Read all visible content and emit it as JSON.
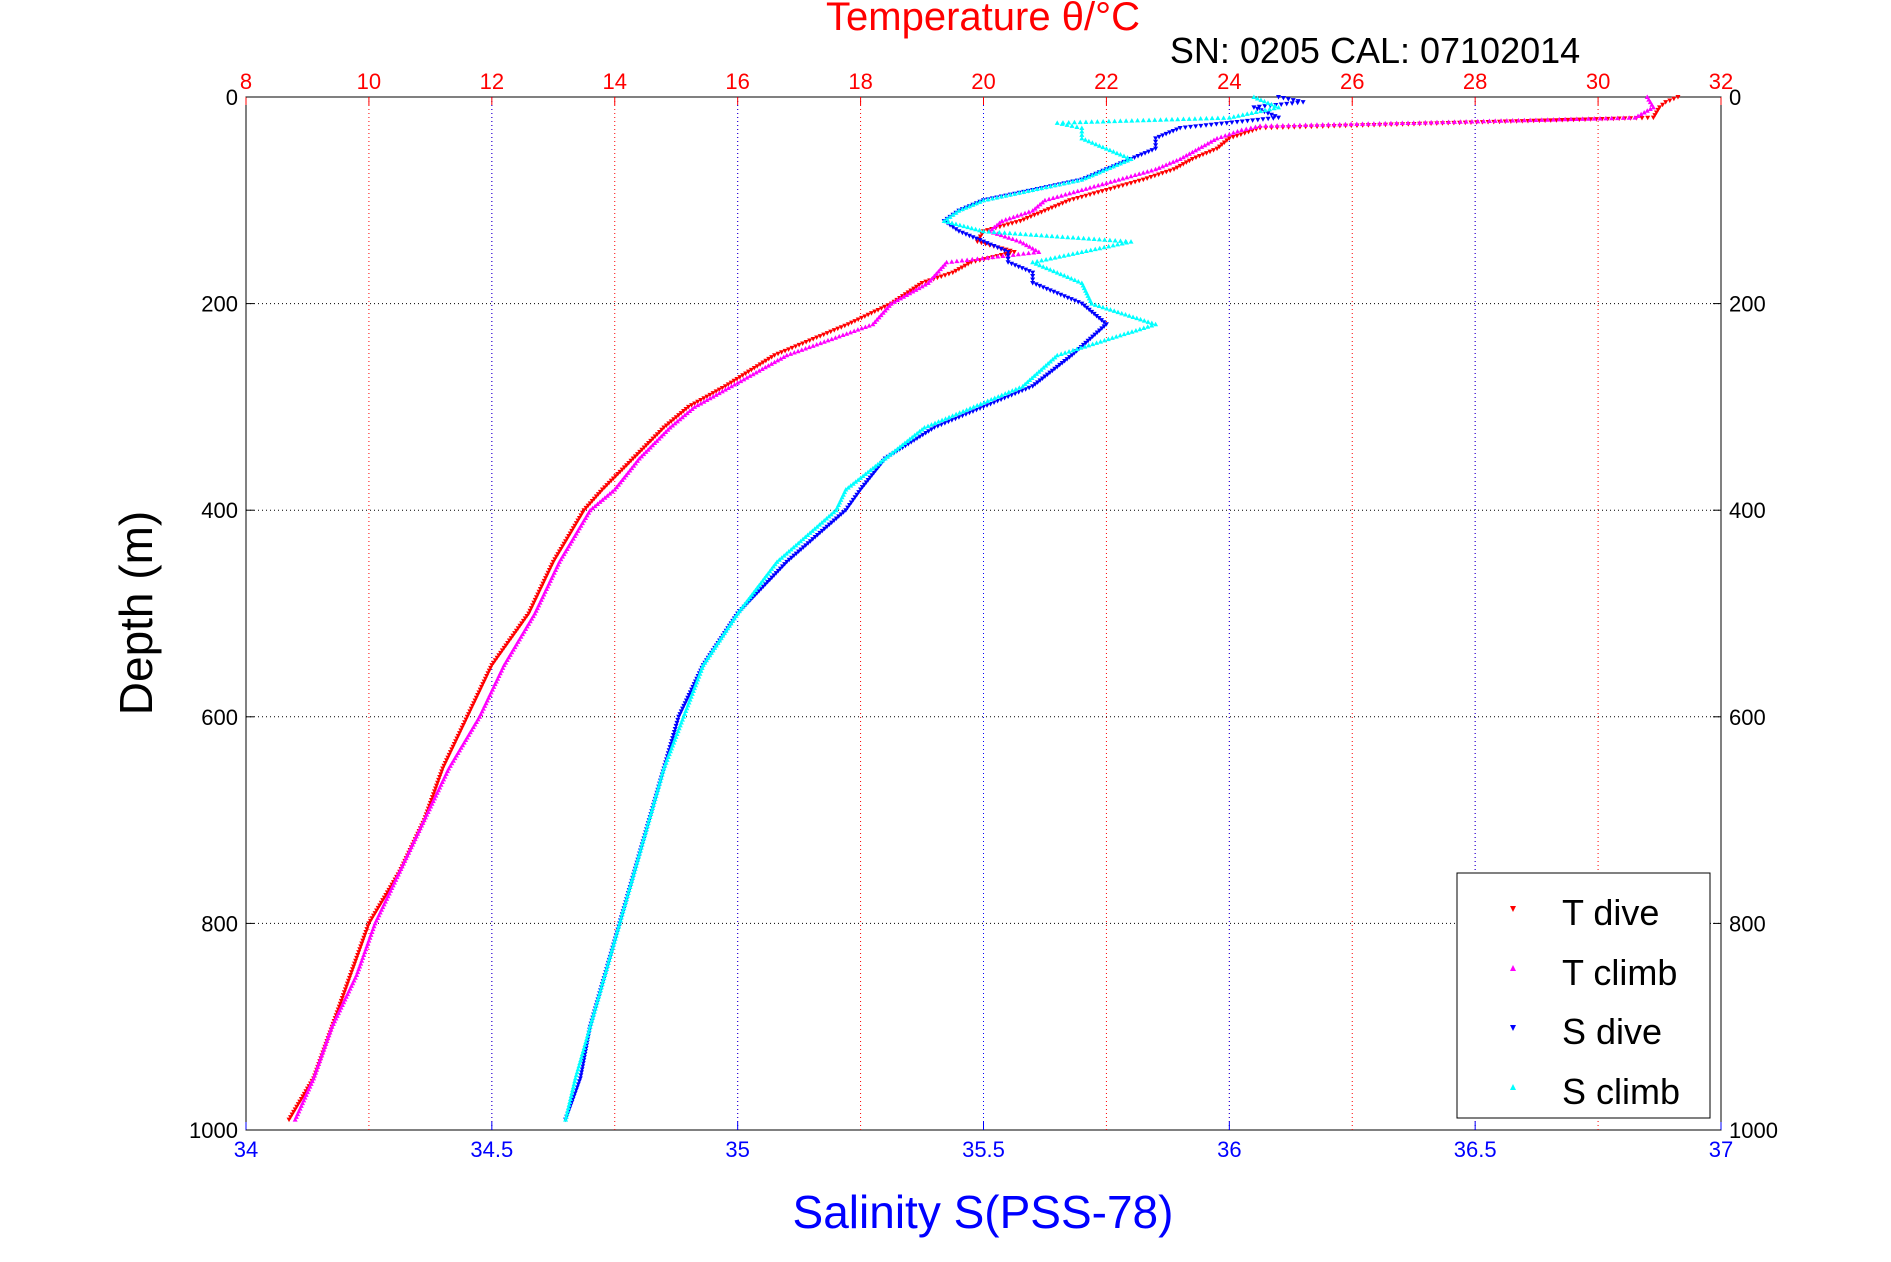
{
  "chart_data": {
    "type": "scatter",
    "title": "Temperature θ/°C",
    "subtitle": "SN: 0205  CAL: 07102014",
    "ylabel": "Depth (m)",
    "xlabel_bottom": "Salinity S(PSS-78)",
    "ylim": [
      0,
      1000
    ],
    "y_reversed": true,
    "y_ticks": [
      0,
      200,
      400,
      600,
      800,
      1000
    ],
    "x_top": {
      "label": "Temperature θ/°C",
      "range": [
        8,
        32
      ],
      "ticks": [
        8,
        10,
        12,
        14,
        16,
        18,
        20,
        22,
        24,
        26,
        28,
        30,
        32
      ],
      "color": "#ff0000"
    },
    "x_bottom": {
      "label": "Salinity S(PSS-78)",
      "range": [
        34,
        37
      ],
      "ticks": [
        "34",
        "34.5",
        "35",
        "35.5",
        "36",
        "36.5",
        "37"
      ],
      "tick_values": [
        34,
        34.5,
        35,
        35.5,
        36,
        36.5,
        37
      ],
      "color": "#0000ff"
    },
    "grid": true,
    "legend_position": "bottom-right",
    "series": [
      {
        "name": "T dive",
        "axis": "top",
        "color": "#ff0000",
        "marker": "triangle-down",
        "depth": [
          0,
          5,
          10,
          20,
          30,
          40,
          50,
          60,
          70,
          80,
          90,
          100,
          110,
          120,
          130,
          140,
          150,
          160,
          170,
          180,
          200,
          220,
          250,
          280,
          300,
          320,
          350,
          380,
          400,
          450,
          500,
          550,
          600,
          650,
          700,
          750,
          800,
          850,
          900,
          950,
          990
        ],
        "value": [
          31.3,
          31.1,
          31.0,
          30.9,
          24.5,
          24.0,
          23.8,
          23.4,
          23.1,
          22.6,
          22.0,
          21.4,
          21.0,
          20.6,
          20.0,
          19.9,
          20.5,
          19.8,
          19.5,
          19.0,
          18.5,
          17.8,
          16.6,
          15.8,
          15.2,
          14.8,
          14.3,
          13.8,
          13.5,
          13.0,
          12.6,
          12.0,
          11.6,
          11.2,
          10.9,
          10.5,
          10.0,
          9.7,
          9.4,
          9.1,
          8.7
        ]
      },
      {
        "name": "T climb",
        "axis": "top",
        "color": "#ff00ff",
        "marker": "triangle-up",
        "depth": [
          0,
          10,
          20,
          25,
          28,
          32,
          40,
          50,
          60,
          70,
          80,
          90,
          100,
          110,
          120,
          130,
          140,
          150,
          160,
          180,
          200,
          220,
          250,
          280,
          300,
          320,
          350,
          380,
          400,
          450,
          500,
          550,
          600,
          650,
          700,
          750,
          800,
          850,
          900,
          950,
          990
        ],
        "value": [
          30.8,
          30.9,
          30.6,
          27.0,
          24.5,
          24.2,
          23.8,
          23.5,
          23.2,
          22.8,
          22.2,
          21.6,
          21.0,
          20.8,
          20.3,
          20.1,
          20.6,
          20.9,
          19.4,
          19.1,
          18.5,
          18.2,
          16.8,
          15.9,
          15.3,
          14.9,
          14.4,
          14.0,
          13.6,
          13.1,
          12.7,
          12.2,
          11.8,
          11.3,
          10.9,
          10.5,
          10.1,
          9.8,
          9.4,
          9.1,
          8.8
        ]
      },
      {
        "name": "S dive",
        "axis": "bottom",
        "color": "#0000ff",
        "marker": "triangle-down",
        "depth": [
          0,
          5,
          10,
          20,
          30,
          40,
          50,
          60,
          70,
          80,
          90,
          100,
          110,
          120,
          130,
          140,
          150,
          160,
          170,
          180,
          200,
          220,
          250,
          280,
          300,
          320,
          350,
          380,
          400,
          450,
          500,
          550,
          600,
          650,
          700,
          750,
          800,
          850,
          900,
          950,
          990
        ],
        "value": [
          36.1,
          36.15,
          36.05,
          36.1,
          35.9,
          35.85,
          35.85,
          35.8,
          35.75,
          35.7,
          35.6,
          35.5,
          35.45,
          35.42,
          35.45,
          35.5,
          35.55,
          35.55,
          35.6,
          35.6,
          35.7,
          35.75,
          35.68,
          35.6,
          35.5,
          35.4,
          35.3,
          35.25,
          35.22,
          35.1,
          35.0,
          34.93,
          34.88,
          34.85,
          34.82,
          34.79,
          34.76,
          34.73,
          34.7,
          34.68,
          34.65
        ]
      },
      {
        "name": "S climb",
        "axis": "bottom",
        "color": "#00ffff",
        "marker": "triangle-up",
        "depth": [
          0,
          10,
          20,
          25,
          30,
          40,
          50,
          60,
          70,
          80,
          90,
          100,
          110,
          120,
          130,
          140,
          150,
          160,
          170,
          180,
          200,
          220,
          250,
          280,
          300,
          320,
          350,
          380,
          400,
          450,
          500,
          550,
          600,
          650,
          700,
          750,
          800,
          850,
          900,
          950,
          990
        ],
        "value": [
          36.05,
          36.1,
          36.0,
          35.65,
          35.7,
          35.7,
          35.75,
          35.8,
          35.75,
          35.7,
          35.6,
          35.5,
          35.45,
          35.42,
          35.5,
          35.8,
          35.7,
          35.6,
          35.65,
          35.7,
          35.72,
          35.85,
          35.65,
          35.58,
          35.48,
          35.38,
          35.3,
          35.22,
          35.2,
          35.08,
          35.0,
          34.93,
          34.89,
          34.85,
          34.82,
          34.79,
          34.76,
          34.73,
          34.7,
          34.67,
          34.65
        ]
      }
    ]
  }
}
